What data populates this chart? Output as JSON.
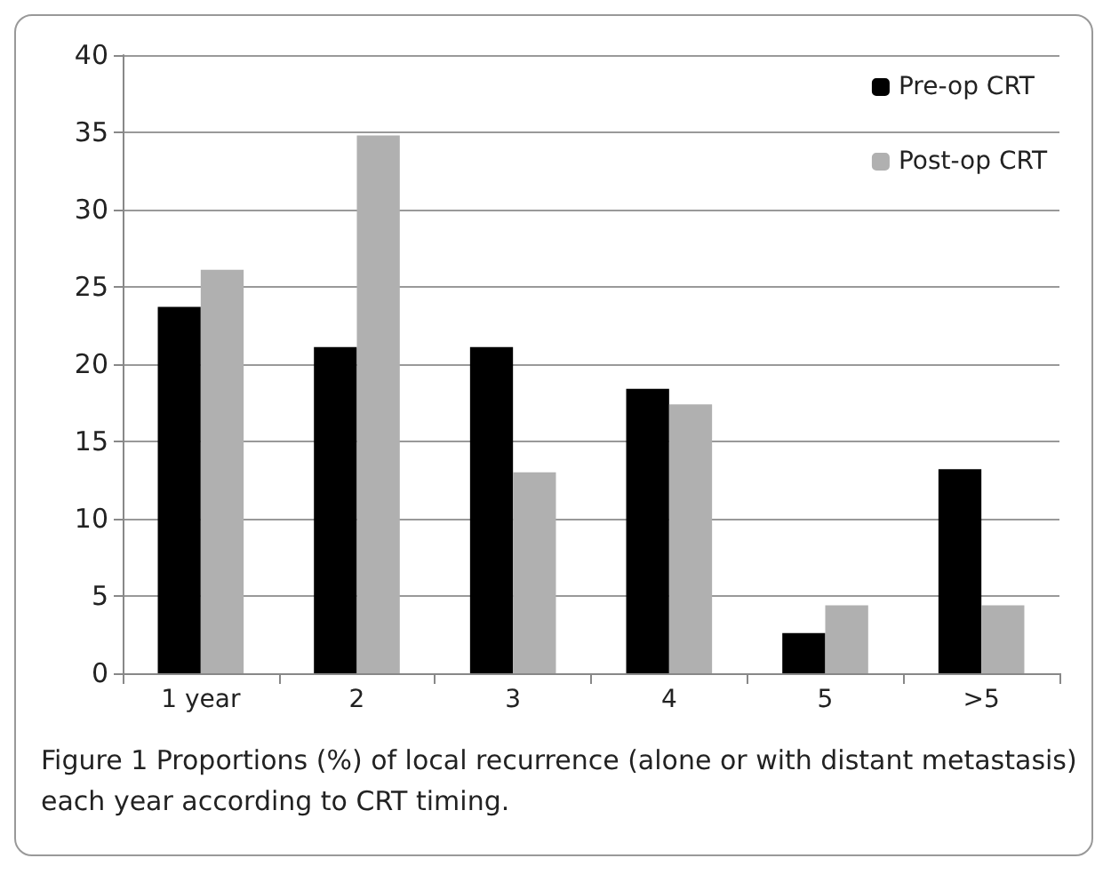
{
  "chart_data": {
    "type": "bar",
    "categories": [
      "1 year",
      "2",
      "3",
      "4",
      "5",
      ">5"
    ],
    "series": [
      {
        "name": "Pre-op CRT",
        "color": "#000000",
        "values": [
          23.7,
          21.1,
          21.1,
          18.4,
          2.6,
          13.2
        ]
      },
      {
        "name": "Post-op CRT",
        "color": "#b0b0b0",
        "values": [
          26.1,
          34.8,
          13.0,
          17.4,
          4.4,
          4.4
        ]
      }
    ],
    "ylim": [
      0,
      40
    ],
    "yticks": [
      0,
      5,
      10,
      15,
      20,
      25,
      30,
      35,
      40
    ],
    "grid": "y",
    "legend": "top right",
    "annotations": [
      "Figure 1 Proportions (%) of local recurrence (alone or with distant metastasis) each year according to CRT timing."
    ]
  }
}
